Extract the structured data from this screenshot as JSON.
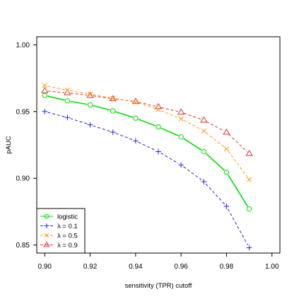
{
  "chart_data": {
    "type": "line",
    "title": "",
    "xlabel": "sensitivity (TPR) cutoff",
    "ylabel": "pAUC",
    "xlim": [
      0.9,
      1.0
    ],
    "ylim": [
      0.85,
      1.0
    ],
    "xticks": [
      "0.90",
      "0.92",
      "0.94",
      "0.96",
      "0.98",
      "1.00"
    ],
    "yticks": [
      "0.85",
      "0.90",
      "0.95",
      "1.00"
    ],
    "x": [
      0.9,
      0.91,
      0.92,
      0.93,
      0.94,
      0.95,
      0.96,
      0.97,
      0.98,
      0.99
    ],
    "grid": false,
    "legend_position": "bottom-left",
    "series": [
      {
        "name": "logistic",
        "color": "#00e000",
        "line": "solid",
        "marker": "circle",
        "values": [
          0.962,
          0.958,
          0.955,
          0.9505,
          0.945,
          0.9385,
          0.931,
          0.92,
          0.9045,
          0.877
        ]
      },
      {
        "name": "λ = 0.1",
        "color": "#2222dd",
        "line": "dashed",
        "marker": "plus",
        "values": [
          0.95,
          0.9455,
          0.94,
          0.9345,
          0.928,
          0.92,
          0.91,
          0.8975,
          0.879,
          0.848
        ]
      },
      {
        "name": "λ = 0.5",
        "color": "#ff9900",
        "line": "dashed",
        "marker": "x",
        "values": [
          0.9695,
          0.966,
          0.963,
          0.96,
          0.957,
          0.9515,
          0.9445,
          0.9355,
          0.922,
          0.899
        ]
      },
      {
        "name": "λ = 0.9",
        "color": "#e03030",
        "line": "dashed",
        "marker": "triangle",
        "values": [
          0.9655,
          0.964,
          0.962,
          0.9595,
          0.9575,
          0.9535,
          0.9495,
          0.9435,
          0.9345,
          0.9185
        ]
      }
    ]
  }
}
